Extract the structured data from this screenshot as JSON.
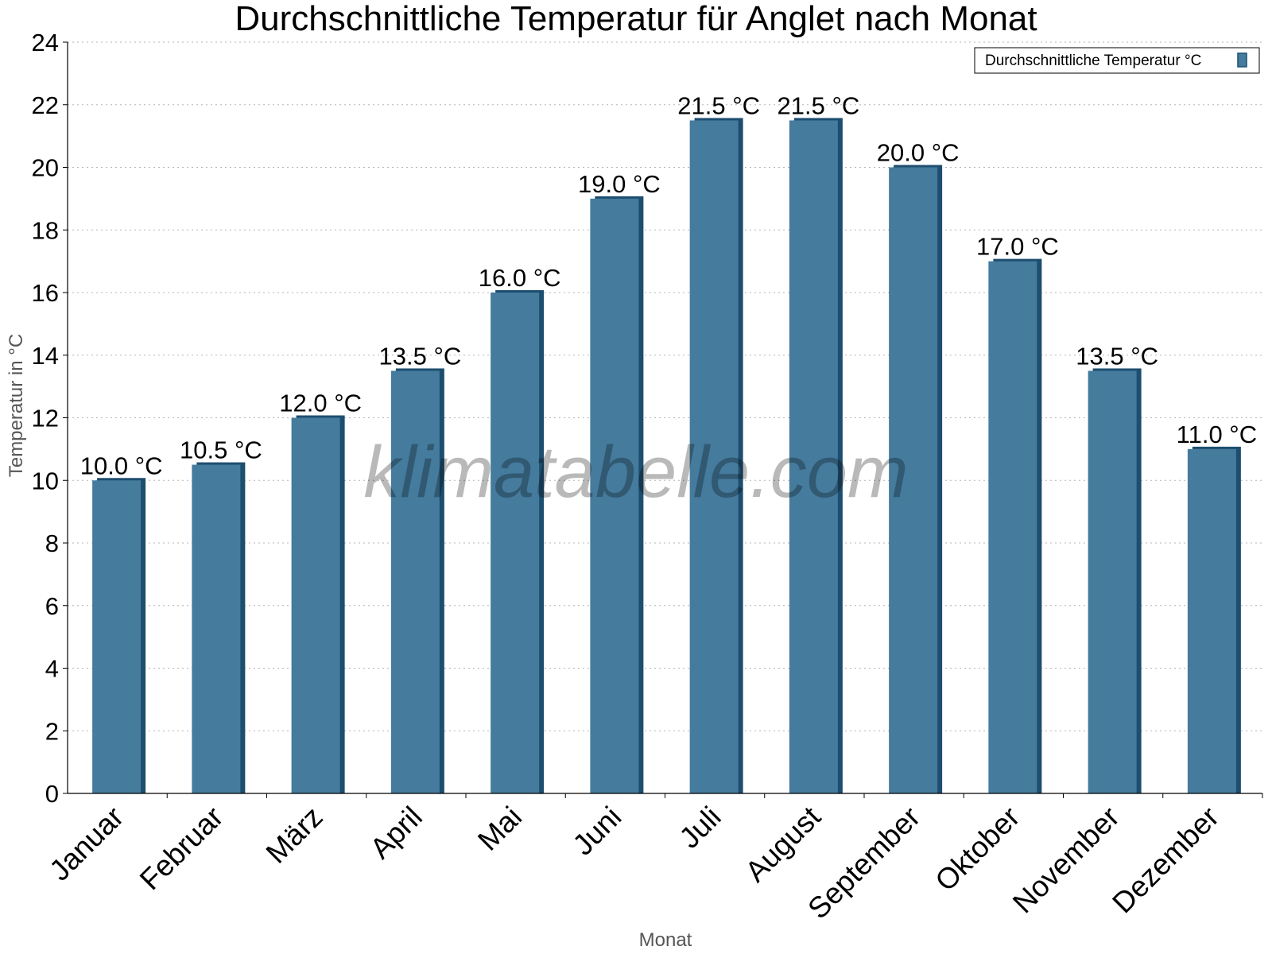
{
  "chart_data": {
    "type": "bar",
    "title": "Durchschnittliche Temperatur für Anglet nach Monat",
    "xlabel": "Monat",
    "ylabel": "Temperatur in °C",
    "ylim": [
      0,
      24
    ],
    "yticks": [
      0,
      2,
      4,
      6,
      8,
      10,
      12,
      14,
      16,
      18,
      20,
      22,
      24
    ],
    "grid": true,
    "legend_position": "top-right",
    "categories": [
      "Januar",
      "Februar",
      "März",
      "April",
      "Mai",
      "Juni",
      "Juli",
      "August",
      "September",
      "Oktober",
      "November",
      "Dezember"
    ],
    "series": [
      {
        "name": "Durchschnittliche Temperatur °C",
        "values": [
          10.0,
          10.5,
          12.0,
          13.5,
          16.0,
          19.0,
          21.5,
          21.5,
          20.0,
          17.0,
          13.5,
          11.0
        ],
        "labels": [
          "10.0 °C",
          "10.5 °C",
          "12.0 °C",
          "13.5 °C",
          "16.0 °C",
          "19.0 °C",
          "21.5 °C",
          "21.5 °C",
          "20.0 °C",
          "17.0 °C",
          "13.5 °C",
          "11.0 °C"
        ],
        "color": "#457b9d",
        "shade_color": "#1d4e6f"
      }
    ],
    "watermark": "klimatabelle.com"
  }
}
